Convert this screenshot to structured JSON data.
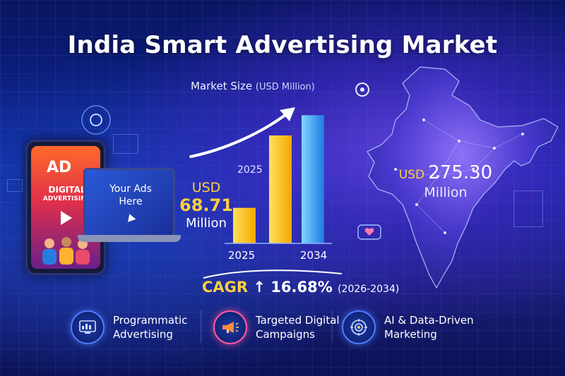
{
  "title": "India Smart Advertising Market",
  "chart": {
    "title": "Market Size",
    "unit": "(USD Million)",
    "mid_label": "2025"
  },
  "chart_data": {
    "type": "bar",
    "title": "Market Size (USD Million)",
    "categories": [
      "2025",
      "2034"
    ],
    "values": [
      68.71,
      275.3
    ],
    "ylim": [
      0,
      300
    ],
    "grid": false,
    "legend": "none"
  },
  "left_value": {
    "currency": "USD",
    "amount": "68.71",
    "unit": "Million"
  },
  "right_value": {
    "currency": "USD",
    "amount": "275.30",
    "unit": "Million"
  },
  "cagr": {
    "label": "CAGR",
    "value": "16.68%",
    "range": "(2026-2034)"
  },
  "devices": {
    "phone_badge": "AD",
    "phone_line1": "DIGITAL",
    "phone_line2": "ADVERTISING",
    "laptop_text": "Your Ads Here"
  },
  "features": [
    {
      "label_line1": "Programmatic",
      "label_line2": "Advertising",
      "icon": "dashboard-icon"
    },
    {
      "label_line1": "Targeted Digital",
      "label_line2": "Campaigns",
      "icon": "megaphone-icon"
    },
    {
      "label_line1": "AI & Data-Driven",
      "label_line2": "Marketing",
      "icon": "ai-target-icon"
    }
  ],
  "colors": {
    "accent_gold": "#ffcf3d",
    "accent_blue": "#3fa8ff",
    "background": "#0f2aa0"
  }
}
